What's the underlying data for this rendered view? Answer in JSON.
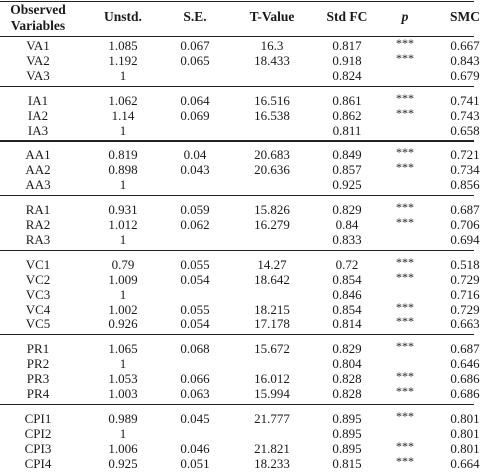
{
  "headers": {
    "variables": "Observed\nVariables",
    "unstd": "Unstd.",
    "se": "S.E.",
    "tvalue": "T-Value",
    "stdfc": "Std FC",
    "p": "p",
    "smc": "SMC"
  },
  "groups": [
    {
      "rows": [
        {
          "var": "VA1",
          "unstd": "1.085",
          "se": "0.067",
          "t": "16.3",
          "fc": "0.817",
          "p": "***",
          "smc": "0.667"
        },
        {
          "var": "VA2",
          "unstd": "1.192",
          "se": "0.065",
          "t": "18.433",
          "fc": "0.918",
          "p": "***",
          "smc": "0.843"
        },
        {
          "var": "VA3",
          "unstd": "1",
          "se": "",
          "t": "",
          "fc": "0.824",
          "p": "",
          "smc": "0.679"
        }
      ]
    },
    {
      "rows": [
        {
          "var": "IA1",
          "unstd": "1.062",
          "se": "0.064",
          "t": "16.516",
          "fc": "0.861",
          "p": "***",
          "smc": "0.741"
        },
        {
          "var": "IA2",
          "unstd": "1.14",
          "se": "0.069",
          "t": "16.538",
          "fc": "0.862",
          "p": "***",
          "smc": "0.743"
        },
        {
          "var": "IA3",
          "unstd": "1",
          "se": "",
          "t": "",
          "fc": "0.811",
          "p": "",
          "smc": "0.658"
        }
      ]
    },
    {
      "rows": [
        {
          "var": "AA1",
          "unstd": "0.819",
          "se": "0.04",
          "t": "20.683",
          "fc": "0.849",
          "p": "***",
          "smc": "0.721"
        },
        {
          "var": "AA2",
          "unstd": "0.898",
          "se": "0.043",
          "t": "20.636",
          "fc": "0.857",
          "p": "***",
          "smc": "0.734"
        },
        {
          "var": "AA3",
          "unstd": "1",
          "se": "",
          "t": "",
          "fc": "0.925",
          "p": "",
          "smc": "0.856"
        }
      ]
    },
    {
      "rows": [
        {
          "var": "RA1",
          "unstd": "0.931",
          "se": "0.059",
          "t": "15.826",
          "fc": "0.829",
          "p": "***",
          "smc": "0.687"
        },
        {
          "var": "RA2",
          "unstd": "1.012",
          "se": "0.062",
          "t": "16.279",
          "fc": "0.84",
          "p": "***",
          "smc": "0.706"
        },
        {
          "var": "RA3",
          "unstd": "1",
          "se": "",
          "t": "",
          "fc": "0.833",
          "p": "",
          "smc": "0.694"
        }
      ]
    },
    {
      "rows": [
        {
          "var": "VC1",
          "unstd": "0.79",
          "se": "0.055",
          "t": "14.27",
          "fc": "0.72",
          "p": "***",
          "smc": "0.518"
        },
        {
          "var": "VC2",
          "unstd": "1.009",
          "se": "0.054",
          "t": "18.642",
          "fc": "0.854",
          "p": "***",
          "smc": "0.729"
        },
        {
          "var": "VC3",
          "unstd": "1",
          "se": "",
          "t": "",
          "fc": "0.846",
          "p": "",
          "smc": "0.716"
        },
        {
          "var": "VC4",
          "unstd": "1.002",
          "se": "0.055",
          "t": "18.215",
          "fc": "0.854",
          "p": "***",
          "smc": "0.729"
        },
        {
          "var": "VC5",
          "unstd": "0.926",
          "se": "0.054",
          "t": "17.178",
          "fc": "0.814",
          "p": "***",
          "smc": "0.663"
        }
      ]
    },
    {
      "rows": [
        {
          "var": "PR1",
          "unstd": "1.065",
          "se": "0.068",
          "t": "15.672",
          "fc": "0.829",
          "p": "***",
          "smc": "0.687"
        },
        {
          "var": "PR2",
          "unstd": "1",
          "se": "",
          "t": "",
          "fc": "0.804",
          "p": "",
          "smc": "0.646"
        },
        {
          "var": "PR3",
          "unstd": "1.053",
          "se": "0.066",
          "t": "16.012",
          "fc": "0.828",
          "p": "***",
          "smc": "0.686"
        },
        {
          "var": "PR4",
          "unstd": "1.003",
          "se": "0.063",
          "t": "15.994",
          "fc": "0.828",
          "p": "***",
          "smc": "0.686"
        }
      ]
    },
    {
      "rows": [
        {
          "var": "CPI1",
          "unstd": "0.989",
          "se": "0.045",
          "t": "21.777",
          "fc": "0.895",
          "p": "***",
          "smc": "0.801"
        },
        {
          "var": "CPI2",
          "unstd": "1",
          "se": "",
          "t": "",
          "fc": "0.895",
          "p": "",
          "smc": "0.801"
        },
        {
          "var": "CPI3",
          "unstd": "1.006",
          "se": "0.046",
          "t": "21.821",
          "fc": "0.895",
          "p": "***",
          "smc": "0.801"
        },
        {
          "var": "CPI4",
          "unstd": "0.925",
          "se": "0.051",
          "t": "18.233",
          "fc": "0.815",
          "p": "***",
          "smc": "0.664"
        }
      ]
    }
  ]
}
